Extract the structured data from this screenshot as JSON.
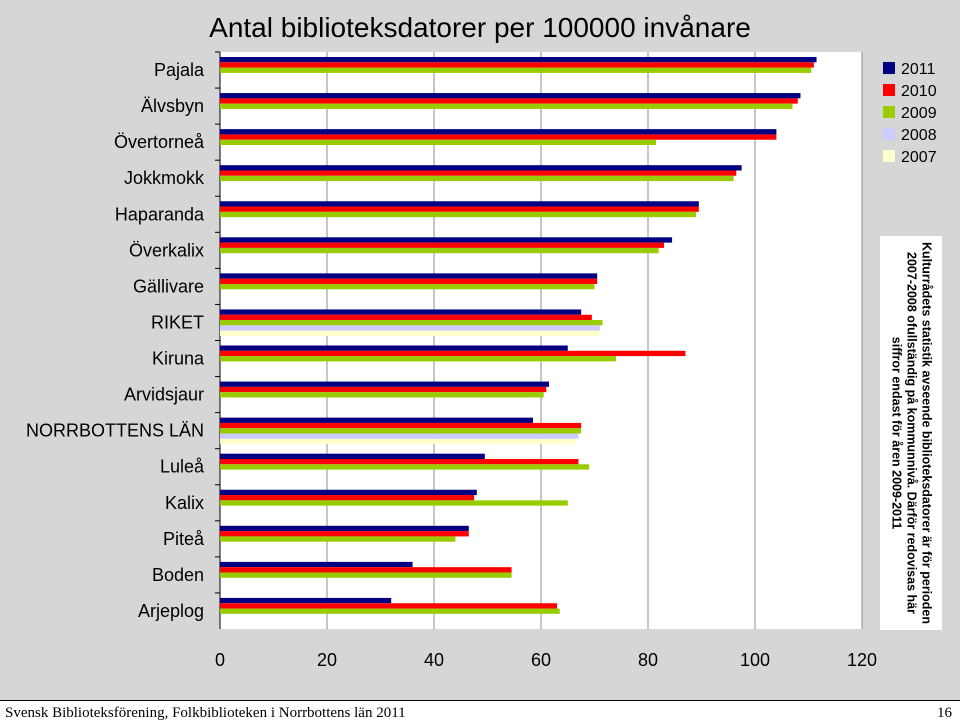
{
  "chart_data": {
    "type": "bar",
    "orientation": "horizontal",
    "title": "Antal biblioteksdatorer per 100000 invånare",
    "categories": [
      "Pajala",
      "Älvsbyn",
      "Övertorneå",
      "Jokkmokk",
      "Haparanda",
      "Överkalix",
      "Gällivare",
      "RIKET",
      "Kiruna",
      "Arvidsjaur",
      "NORRBOTTENS LÄN",
      "Luleå",
      "Kalix",
      "Piteå",
      "Boden",
      "Arjeplog"
    ],
    "series": [
      {
        "name": "2011",
        "color": "#000080",
        "values": [
          111.5,
          108.5,
          104,
          97.5,
          89.5,
          84.5,
          70.5,
          67.5,
          65,
          61.5,
          58.5,
          49.5,
          48,
          46.5,
          36,
          32
        ]
      },
      {
        "name": "2010",
        "color": "#ff0000",
        "values": [
          111,
          108,
          104,
          96.5,
          89.5,
          83,
          70.5,
          69.5,
          87,
          61,
          67.5,
          67,
          47.5,
          46.5,
          54.5,
          63
        ]
      },
      {
        "name": "2009",
        "color": "#99cc00",
        "values": [
          110.5,
          107,
          81.5,
          96,
          89,
          82,
          70,
          71.5,
          74,
          60.5,
          67.5,
          69,
          65,
          44,
          54.5,
          63.5
        ]
      },
      {
        "name": "2008",
        "color": "#ccccff",
        "values": [
          null,
          null,
          null,
          null,
          null,
          null,
          null,
          71,
          null,
          null,
          67,
          null,
          null,
          null,
          null,
          null
        ]
      },
      {
        "name": "2007",
        "color": "#ffffcc",
        "values": [
          null,
          null,
          null,
          null,
          null,
          null,
          null,
          71,
          null,
          null,
          66.5,
          null,
          null,
          null,
          null,
          null
        ]
      }
    ],
    "xlim": [
      0,
      120
    ],
    "xticks": [
      "0",
      "20",
      "40",
      "60",
      "80",
      "100",
      "120"
    ],
    "grid": true,
    "legend_position": "top-right",
    "note": "Kulturrådets statistik avseende biblioteksdatorer är för perioden 2007-2008 ofullständig på kommunnivå. Därför redovisas här siffror endast för åren 2009-2011"
  },
  "footer": {
    "source": "Svensk Biblioteksförening, Folkbiblioteken i Norrbottens län 2011",
    "page_number": "16"
  }
}
